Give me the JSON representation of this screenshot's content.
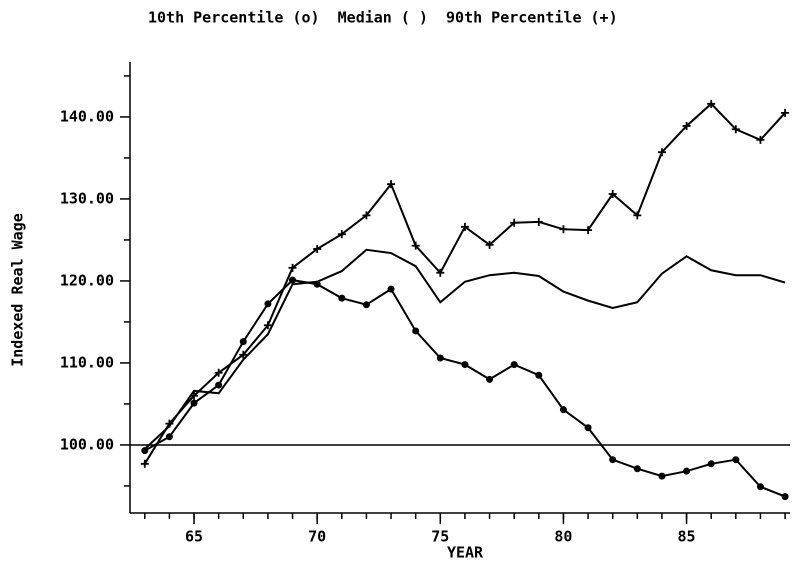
{
  "chart_data": {
    "type": "line",
    "title": "10th Percentile (o)  Median ( )  90th Percentile (+)",
    "x_label": "YEAR",
    "y_label": "Indexed Real Wage",
    "x": [
      63,
      64,
      65,
      66,
      67,
      68,
      69,
      70,
      71,
      72,
      73,
      74,
      75,
      76,
      77,
      78,
      79,
      80,
      81,
      82,
      83,
      84,
      85,
      86,
      87,
      88,
      89
    ],
    "series": [
      {
        "name": "10th Percentile",
        "color": "#000000",
        "marker": "circle",
        "values": [
          99.3,
          101.0,
          105.1,
          107.3,
          112.6,
          117.2,
          120.1,
          119.6,
          117.9,
          117.1,
          119.0,
          113.9,
          110.6,
          109.8,
          108.0,
          109.8,
          108.5,
          104.3,
          102.1,
          98.2,
          97.1,
          96.2,
          96.8,
          97.7,
          98.2,
          94.9,
          93.7
        ]
      },
      {
        "name": "Median",
        "color": "#000000",
        "marker": "none",
        "values": [
          99.5,
          102.3,
          106.6,
          106.3,
          110.4,
          113.5,
          119.6,
          119.9,
          121.2,
          123.8,
          123.4,
          121.8,
          117.4,
          119.9,
          120.7,
          121.0,
          120.6,
          118.7,
          117.6,
          116.7,
          117.4,
          120.9,
          123.0,
          121.3,
          120.7,
          120.7,
          119.8
        ]
      },
      {
        "name": "90th Percentile",
        "color": "#000000",
        "marker": "plus",
        "values": [
          97.7,
          102.6,
          106.0,
          108.8,
          111.0,
          114.6,
          121.6,
          123.9,
          125.7,
          128.0,
          131.8,
          124.3,
          121.0,
          126.6,
          124.4,
          127.1,
          127.2,
          126.3,
          126.2,
          130.6,
          128.0,
          135.7,
          138.9,
          141.6,
          138.5,
          137.2,
          140.5
        ]
      }
    ],
    "xlim": [
      62.4,
      89.2
    ],
    "xticks": [
      65,
      70,
      75,
      80,
      85
    ],
    "xminorticks": [
      63,
      64,
      65,
      66,
      67,
      68,
      69,
      70,
      71,
      72,
      73,
      74,
      75,
      76,
      77,
      78,
      79,
      80,
      81,
      82,
      83,
      84,
      85,
      86,
      87,
      88,
      89
    ],
    "ylim": [
      91.7,
      146.7
    ],
    "yticks": [
      {
        "value": 100,
        "label": "100.00"
      },
      {
        "value": 110,
        "label": "110.00"
      },
      {
        "value": 120,
        "label": "120.00"
      },
      {
        "value": 130,
        "label": "130.00"
      },
      {
        "value": 140,
        "label": "140.00"
      }
    ],
    "yminorticks": [
      95,
      105,
      115,
      125,
      135,
      145
    ],
    "hline": 100,
    "grid": false
  }
}
